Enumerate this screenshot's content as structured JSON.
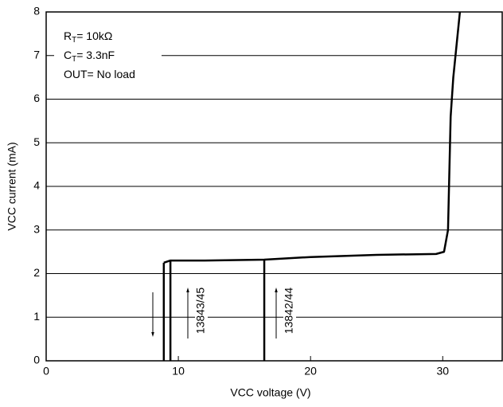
{
  "chart_data": {
    "type": "line",
    "x_label": "VCC  voltage  (V)",
    "y_label": "VCC  current  (mA)",
    "xlim": [
      0,
      34.5
    ],
    "ylim": [
      0,
      8
    ],
    "xticks": [
      0,
      10,
      20,
      30
    ],
    "yticks": [
      0,
      1,
      2,
      3,
      4,
      5,
      6,
      7,
      8
    ],
    "grid": true,
    "series": [
      {
        "color": "#000000",
        "x": [
          8.9,
          9.4,
          12,
          16.5,
          20,
          25,
          29.5,
          30.1,
          30.4,
          30.6,
          30.8,
          31.3
        ],
        "values": [
          2.25,
          2.3,
          2.3,
          2.32,
          2.38,
          2.43,
          2.45,
          2.5,
          3.0,
          5.6,
          6.5,
          8
        ]
      },
      {
        "color": "#000000",
        "x": [
          8.9,
          8.9
        ],
        "values": [
          0,
          2.25
        ]
      },
      {
        "color": "#000000",
        "x": [
          9.4,
          9.4
        ],
        "values": [
          0,
          2.3
        ]
      },
      {
        "color": "#000000",
        "x": [
          16.5,
          16.5
        ],
        "values": [
          0,
          2.32
        ]
      }
    ],
    "notes": [
      {
        "text": "R",
        "sub": "T",
        "rest": "= 10kΩ"
      },
      {
        "text": "C",
        "sub": "T",
        "rest": "= 3.3nF"
      },
      {
        "text": "OUT= No load"
      }
    ],
    "part_labels": [
      "13843/45",
      "13842/44"
    ]
  }
}
